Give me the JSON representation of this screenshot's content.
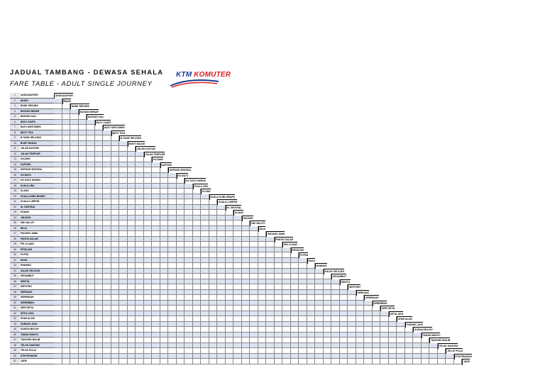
{
  "header": {
    "title_my": "JADUAL TAMBANG -  DEWASA SEHALA",
    "title_en": "FARE TABLE - ADULT SINGLE JOURNEY",
    "logo_ktm": "KTM",
    "logo_komuter": " KOMUTER"
  },
  "colors": {
    "logo_blue": "#1b3a8c",
    "logo_red": "#d61f26",
    "row_shade": "#dde3f0"
  },
  "stations": [
    "ANGKASAPURI",
    "BANGI",
    "BANK NEGARA",
    "BATANG BENAR",
    "BATANG KALI",
    "BATU CAVES",
    "BATU KENTOMEN",
    "BATU TIGA",
    "B.TASIK SELATAN",
    "BUKIT BADAK",
    "JALAN KASTAM",
    "JALAN TEMPLER",
    "KAJANG",
    "KAPONG",
    "KEPONG SENTRAL",
    "KG BATU",
    "KG DATO HARUN",
    "KUALA UBA",
    "KLANG",
    "KUALA KUBU BHARU",
    "KUALA LUMPUR",
    "KL SENTRAL",
    "KUANG",
    "JINJANG",
    "MID VALLEY",
    "NILAI",
    "PADANG JAWA",
    "PANTAI DALAM",
    "PEL KLANG",
    "PETALING",
    "PUTRA",
    "RASA",
    "RAWANG",
    "SALAK SELATAN",
    "SEGAMBUT",
    "SENTUL",
    "SEPUTEH",
    "SERDANG",
    "SERENDAH",
    "SEREMBAN",
    "SERI SETIA",
    "SETIA JAYA",
    "SHAH ALAM",
    "SUBANG JAYA",
    "SUNGAI BULOH",
    "TAMAN WAHYU",
    "TANJUNG MALIM",
    "TELOK GADONG",
    "TELUK PULAI",
    "KTM PRANGIN",
    "JADE"
  ]
}
